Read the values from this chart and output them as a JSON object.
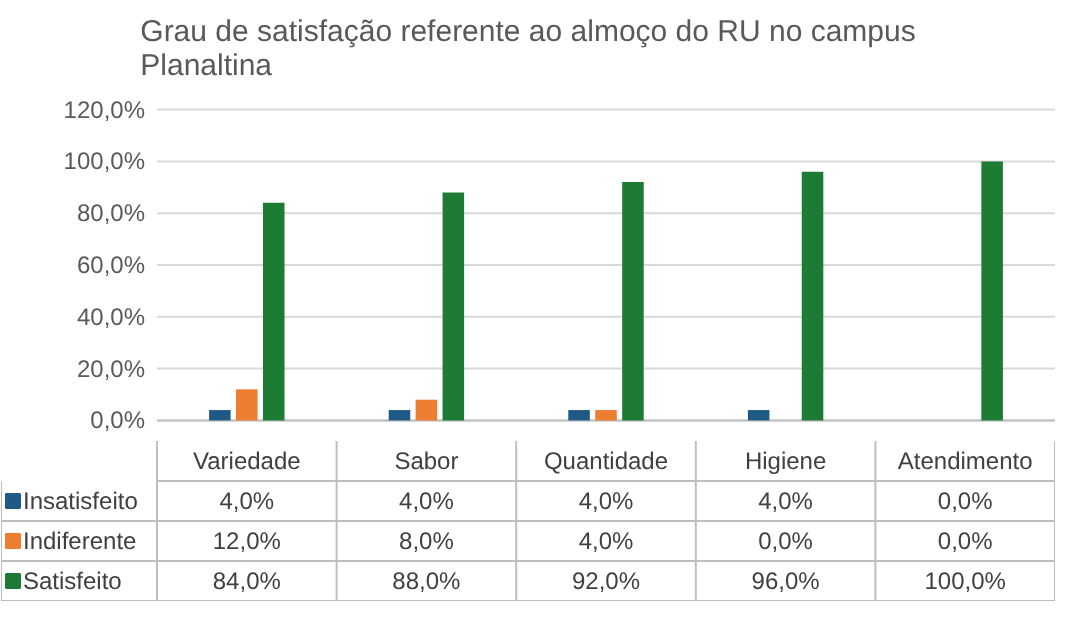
{
  "chart_data": {
    "type": "bar",
    "title": "Grau de satisfação referente ao almoço do RU no campus Planaltina",
    "categories": [
      "Variedade",
      "Sabor",
      "Quantidade",
      "Higiene",
      "Atendimento"
    ],
    "series": [
      {
        "name": "Insatisfeito",
        "color": "#1f5a87",
        "values": [
          4,
          4,
          4,
          4,
          0
        ],
        "value_labels": [
          "4,0%",
          "4,0%",
          "4,0%",
          "4,0%",
          "0,0%"
        ]
      },
      {
        "name": "Indiferente",
        "color": "#ed7d31",
        "values": [
          12,
          8,
          4,
          0,
          0
        ],
        "value_labels": [
          "12,0%",
          "8,0%",
          "4,0%",
          "0,0%",
          "0,0%"
        ]
      },
      {
        "name": "Satisfeito",
        "color": "#1e7b34",
        "values": [
          84,
          88,
          92,
          96,
          100
        ],
        "value_labels": [
          "84,0%",
          "88,0%",
          "92,0%",
          "96,0%",
          "100,0%"
        ]
      }
    ],
    "ylim": [
      0,
      120
    ],
    "yticks": [
      {
        "value": 0,
        "label": "0,0%"
      },
      {
        "value": 20,
        "label": "20,0%"
      },
      {
        "value": 40,
        "label": "40,0%"
      },
      {
        "value": 60,
        "label": "60,0%"
      },
      {
        "value": 80,
        "label": "80,0%"
      },
      {
        "value": 100,
        "label": "100,0%"
      },
      {
        "value": 120,
        "label": "120,0%"
      }
    ],
    "grid": "y",
    "legend": "bottom"
  }
}
